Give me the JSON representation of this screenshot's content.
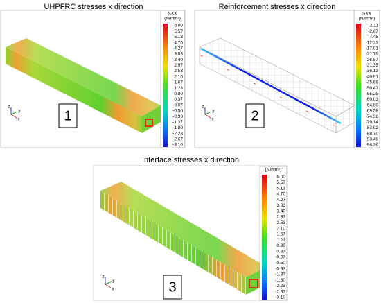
{
  "panels": [
    {
      "title": "UHPFRC stresses x direction",
      "legend": {
        "header": [
          "SXX",
          "(N/mm²)"
        ],
        "labels": [
          "6.00",
          "5.57",
          "5.13",
          "4.70",
          "4.27",
          "3.83",
          "3.40",
          "2.97",
          "2.53",
          "2.10",
          "1.67",
          "1.23",
          "0.80",
          "0.37",
          "-0.07",
          "-0.50",
          "-0.93",
          "-1.37",
          "-1.80",
          "-2.23",
          "-2.67",
          "-3.10"
        ]
      },
      "number": "1",
      "axes": [
        "z",
        "y",
        "x"
      ]
    },
    {
      "title": "Reinforcement stresses x direction",
      "legend": {
        "header": [
          "SXX",
          "(N/mm²)"
        ],
        "labels": [
          "2.11",
          "-2.67",
          "-7.45",
          "-12.23",
          "-17.01",
          "-21.79",
          "-26.57",
          "-31.35",
          "-36.13",
          "-40.91",
          "-45.69",
          "-50.47",
          "-55.25",
          "-60.03",
          "-64.80",
          "-69.58",
          "-74.36",
          "-79.14",
          "-83.92",
          "-88.70",
          "-93.48",
          "-98.26"
        ]
      },
      "number": "2",
      "axes": [
        "z",
        "y",
        "x"
      ]
    },
    {
      "title": "Interface stresses x direction",
      "legend": {
        "header": [
          "[N/mm²]"
        ],
        "labels": [
          "6.00",
          "5.57",
          "5.13",
          "4.70",
          "4.27",
          "3.83",
          "3.40",
          "2.97",
          "2.53",
          "2.10",
          "1.67",
          "1.23",
          "0.80",
          "0.37",
          "-0.07",
          "-0.50",
          "-0.93",
          "-1.37",
          "-1.80",
          "-2.23",
          "-2.67",
          "-3.10"
        ]
      },
      "number": "3",
      "axes": [
        "z",
        "y",
        "x"
      ]
    }
  ]
}
